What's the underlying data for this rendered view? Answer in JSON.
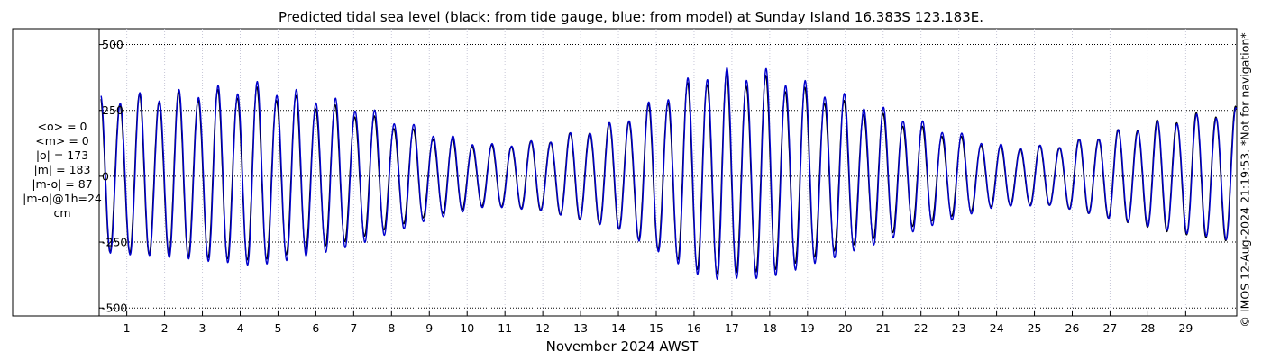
{
  "chart_data": {
    "type": "line",
    "title": "Predicted tidal sea level (black: from tide gauge, blue: from model) at Sunday Island 16.383S 123.183E.",
    "xlabel": "November 2024 AWST",
    "ylabel": "",
    "x_ticks": [
      "1",
      "2",
      "3",
      "4",
      "5",
      "6",
      "7",
      "8",
      "9",
      "10",
      "11",
      "12",
      "13",
      "14",
      "15",
      "16",
      "17",
      "18",
      "19",
      "20",
      "21",
      "22",
      "23",
      "24",
      "25",
      "26",
      "27",
      "28",
      "29"
    ],
    "xlim_days": [
      0.27,
      30.35
    ],
    "y_ticks": [
      "500",
      "250",
      "0",
      "-250",
      "-500"
    ],
    "y_tick_values": [
      500,
      250,
      0,
      -250,
      -500
    ],
    "ylim": [
      -530,
      560
    ],
    "grid": true,
    "series": [
      {
        "name": "black: from tide gauge",
        "color": "#000000",
        "envelope": {
          "day": [
            0.3,
            2,
            4.5,
            7,
            9,
            10.5,
            12,
            14,
            16.3,
            18,
            20,
            22,
            24,
            25.5,
            27,
            28.5,
            30.3
          ],
          "semi_amplitude": [
            285,
            300,
            320,
            240,
            150,
            110,
            130,
            200,
            370,
            360,
            270,
            180,
            110,
            110,
            160,
            210,
            250
          ]
        }
      },
      {
        "name": "blue: from model",
        "color": "#0000cc",
        "envelope": {
          "day": [
            0.3,
            2,
            4.5,
            7,
            9,
            10.5,
            12,
            14,
            16.3,
            18,
            20,
            22,
            24,
            25.5,
            27,
            28.5,
            30.3
          ],
          "semi_amplitude": [
            290,
            305,
            340,
            265,
            165,
            115,
            130,
            200,
            390,
            385,
            295,
            200,
            115,
            110,
            160,
            205,
            245
          ]
        }
      }
    ]
  },
  "stats": {
    "lines": [
      "<o> = 0",
      "<m> = 0",
      "|o| = 173",
      "|m| = 183",
      "|m-o| = 87",
      "|m-o|@1h=24",
      "cm"
    ]
  },
  "credit": "© IMOS 12-Aug-2024 21:19:53. *Not for navigation*",
  "colors": {
    "gauge": "#000000",
    "model": "#0000cc",
    "grid": "#000000"
  }
}
